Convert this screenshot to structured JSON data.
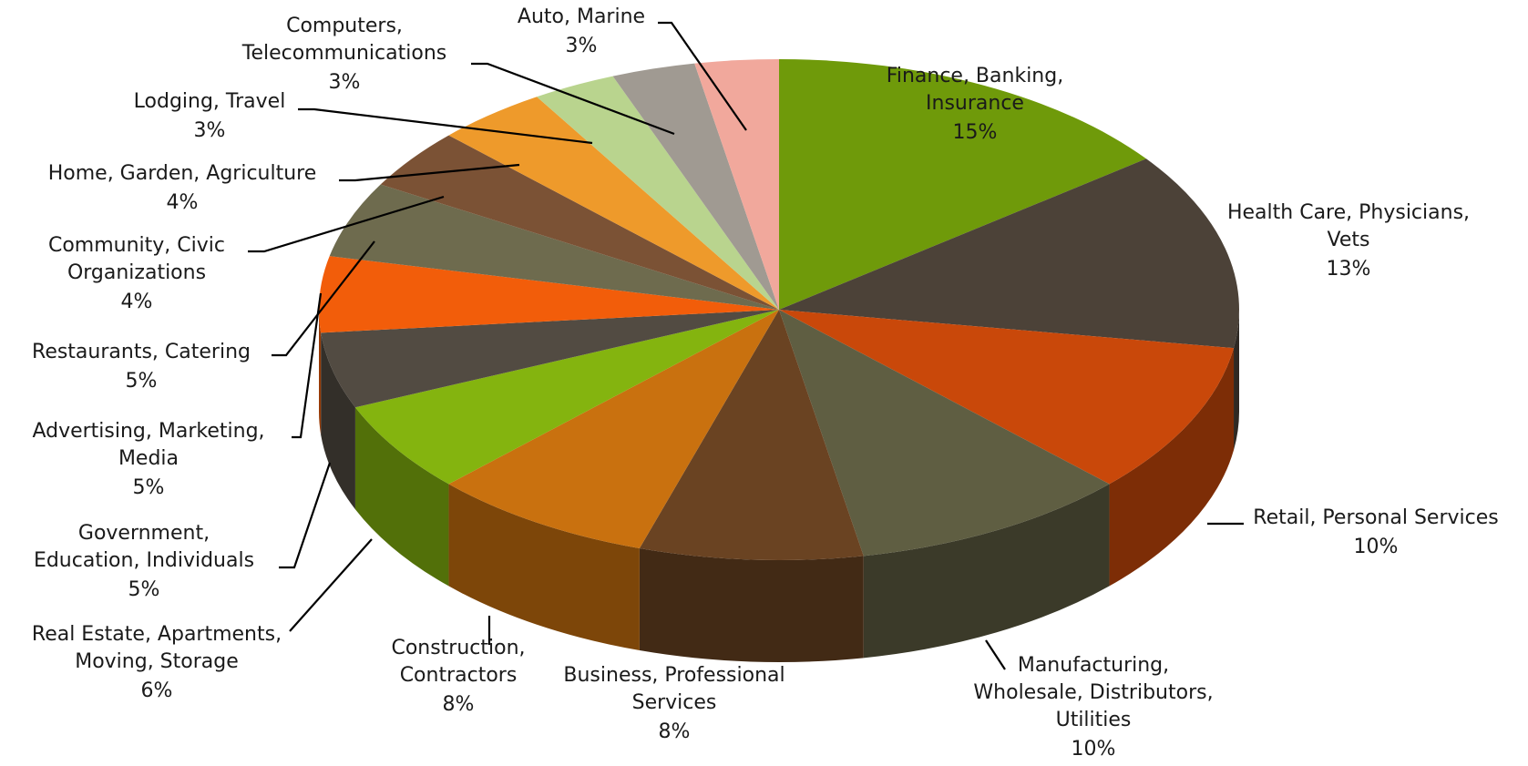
{
  "chart_data": {
    "type": "pie",
    "style": "3d",
    "slices": [
      {
        "label": [
          "Finance, Banking,",
          "Insurance"
        ],
        "value": 15,
        "display": "15%",
        "color": "#6f9a0a"
      },
      {
        "label": [
          "Health Care, Physicians,",
          "Vets"
        ],
        "value": 13,
        "display": "13%",
        "color": "#4c4238"
      },
      {
        "label": [
          "Retail, Personal Services"
        ],
        "value": 10,
        "display": "10%",
        "color": "#c9480a"
      },
      {
        "label": [
          "Manufacturing,",
          "Wholesale, Distributors,",
          "Utilities"
        ],
        "value": 10,
        "display": "10%",
        "color": "#5f5e42"
      },
      {
        "label": [
          "Business, Professional",
          "Services"
        ],
        "value": 8,
        "display": "8%",
        "color": "#6a4322"
      },
      {
        "label": [
          "Construction,",
          "Contractors"
        ],
        "value": 8,
        "display": "8%",
        "color": "#c9710f"
      },
      {
        "label": [
          "Real Estate, Apartments,",
          "Moving, Storage"
        ],
        "value": 6,
        "display": "6%",
        "color": "#84b40f"
      },
      {
        "label": [
          "Government,",
          "Education, Individuals"
        ],
        "value": 5,
        "display": "5%",
        "color": "#524b42"
      },
      {
        "label": [
          "Advertising, Marketing,",
          "Media"
        ],
        "value": 5,
        "display": "5%",
        "color": "#f25d0a"
      },
      {
        "label": [
          "Restaurants, Catering"
        ],
        "value": 5,
        "display": "5%",
        "color": "#6e6b4e"
      },
      {
        "label": [
          "Community, Civic",
          "Organizations"
        ],
        "value": 4,
        "display": "4%",
        "color": "#7b5235"
      },
      {
        "label": [
          "Home, Garden, Agriculture"
        ],
        "value": 4,
        "display": "4%",
        "color": "#ee9a2b"
      },
      {
        "label": [
          "Lodging, Travel"
        ],
        "value": 3,
        "display": "3%",
        "color": "#b9d48e"
      },
      {
        "label": [
          "Computers,",
          "Telecommunications"
        ],
        "value": 3,
        "display": "3%",
        "color": "#a09a92"
      },
      {
        "label": [
          "Auto, Marine"
        ],
        "value": 3,
        "display": "3%",
        "color": "#f1a89c"
      }
    ]
  }
}
